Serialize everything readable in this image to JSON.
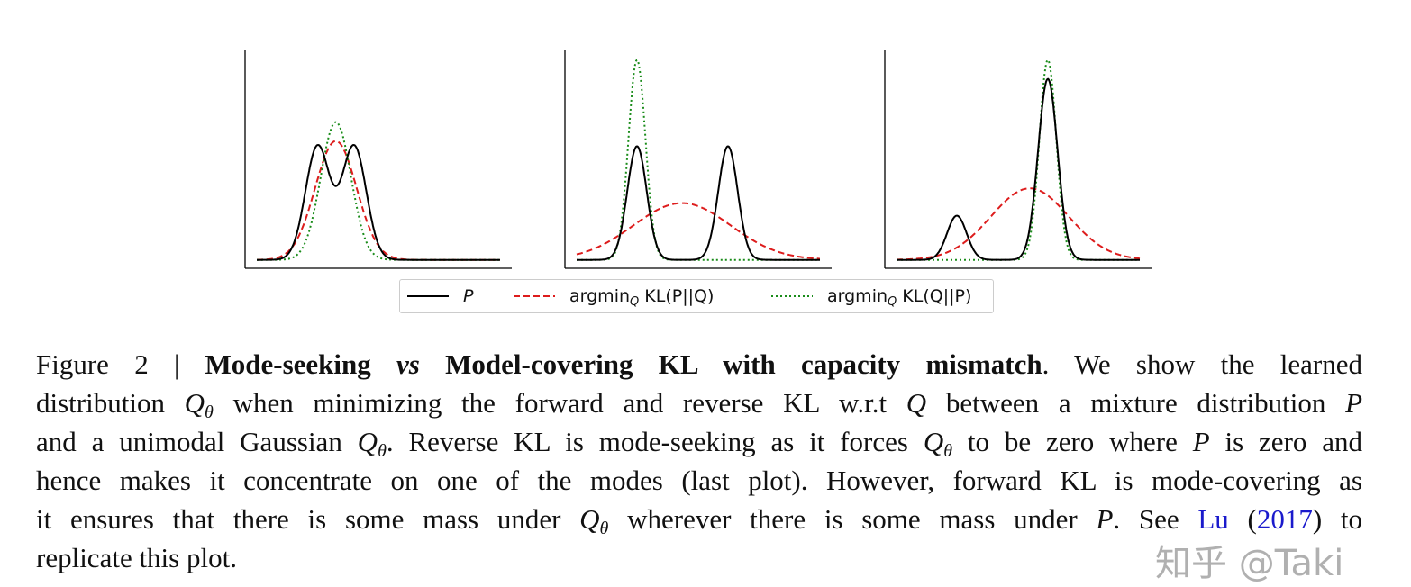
{
  "chart_data": {
    "type": "line",
    "panels": [
      {
        "series": [
          {
            "key": "p",
            "components": [
              {
                "mean": 2.5,
                "sd": 0.5,
                "amp": 0.54
              },
              {
                "mean": 4.0,
                "sd": 0.5,
                "amp": 0.54
              }
            ]
          },
          {
            "key": "forward",
            "components": [
              {
                "mean": 3.25,
                "sd": 0.85,
                "amp": 0.565
              }
            ]
          },
          {
            "key": "reverse",
            "components": [
              {
                "mean": 3.25,
                "sd": 0.62,
                "amp": 0.655
              }
            ]
          }
        ]
      },
      {
        "series": [
          {
            "key": "p",
            "components": [
              {
                "mean": 2.48,
                "sd": 0.4,
                "amp": 0.54
              },
              {
                "mean": 6.22,
                "sd": 0.4,
                "amp": 0.54
              }
            ]
          },
          {
            "key": "forward",
            "components": [
              {
                "mean": 4.33,
                "sd": 2.0,
                "amp": 0.27
              }
            ]
          },
          {
            "key": "reverse",
            "components": [
              {
                "mean": 2.48,
                "sd": 0.35,
                "amp": 0.95
              }
            ]
          }
        ]
      },
      {
        "series": [
          {
            "key": "p",
            "components": [
              {
                "mean": 2.48,
                "sd": 0.4,
                "amp": 0.21
              },
              {
                "mean": 6.22,
                "sd": 0.4,
                "amp": 0.86
              }
            ]
          },
          {
            "key": "forward",
            "components": [
              {
                "mean": 5.48,
                "sd": 1.6,
                "amp": 0.34
              }
            ]
          },
          {
            "key": "reverse",
            "components": [
              {
                "mean": 6.22,
                "sd": 0.35,
                "amp": 0.95
              }
            ]
          }
        ]
      }
    ],
    "xlim": [
      0,
      10
    ],
    "ylim": [
      -0.04,
      1.0
    ],
    "ticks": false,
    "grid": false,
    "legend_placement": "bottom-center",
    "legend": [
      {
        "key": "p",
        "label": "P",
        "style": "solid",
        "color": "#000000"
      },
      {
        "key": "forward",
        "label": "argmin",
        "sub": "Q",
        "label_rest": " KL(P||Q)",
        "style": "dashed",
        "color": "#dd1c1c"
      },
      {
        "key": "reverse",
        "label": "argmin",
        "sub": "Q",
        "label_rest": " KL(Q||P)",
        "style": "dotted",
        "color": "#1a8c1a"
      }
    ]
  },
  "caption": {
    "lines": [
      [
        {
          "t": "Figure 2 | "
        },
        {
          "t": "Mode-seeking ",
          "s": "b"
        },
        {
          "t": "vs",
          "s": "bi"
        },
        {
          "t": " Model-covering KL with capacity mismatch",
          "s": "b"
        },
        {
          "t": ". We show the learned"
        }
      ],
      [
        {
          "t": "distribution "
        },
        {
          "t": "Q",
          "s": "i",
          "sub": "θ"
        },
        {
          "t": " when minimizing the forward and reverse KL w.r.t "
        },
        {
          "t": "Q",
          "s": "i"
        },
        {
          "t": " between a mixture distribution "
        },
        {
          "t": "P",
          "s": "i"
        }
      ],
      [
        {
          "t": "and a unimodal Gaussian "
        },
        {
          "t": "Q",
          "s": "i",
          "sub": "θ"
        },
        {
          "t": ". Reverse KL is mode-seeking as it forces "
        },
        {
          "t": "Q",
          "s": "i",
          "sub": "θ"
        },
        {
          "t": " to be zero where "
        },
        {
          "t": "P",
          "s": "i"
        },
        {
          "t": " is zero and"
        }
      ],
      [
        {
          "t": "hence makes it concentrate on one of the modes (last plot). However, forward KL is mode-covering as"
        }
      ],
      [
        {
          "t": "it ensures that there is some mass under "
        },
        {
          "t": "Q",
          "s": "i",
          "sub": "θ"
        },
        {
          "t": " wherever there is some mass under "
        },
        {
          "t": "P",
          "s": "i"
        },
        {
          "t": ". See "
        },
        {
          "t": "Lu",
          "s": "link"
        },
        {
          "t": " ("
        },
        {
          "t": "2017",
          "s": "link"
        },
        {
          "t": ") to"
        }
      ],
      [
        {
          "t": "replicate this plot."
        }
      ]
    ]
  },
  "watermark": "知乎 @Taki"
}
